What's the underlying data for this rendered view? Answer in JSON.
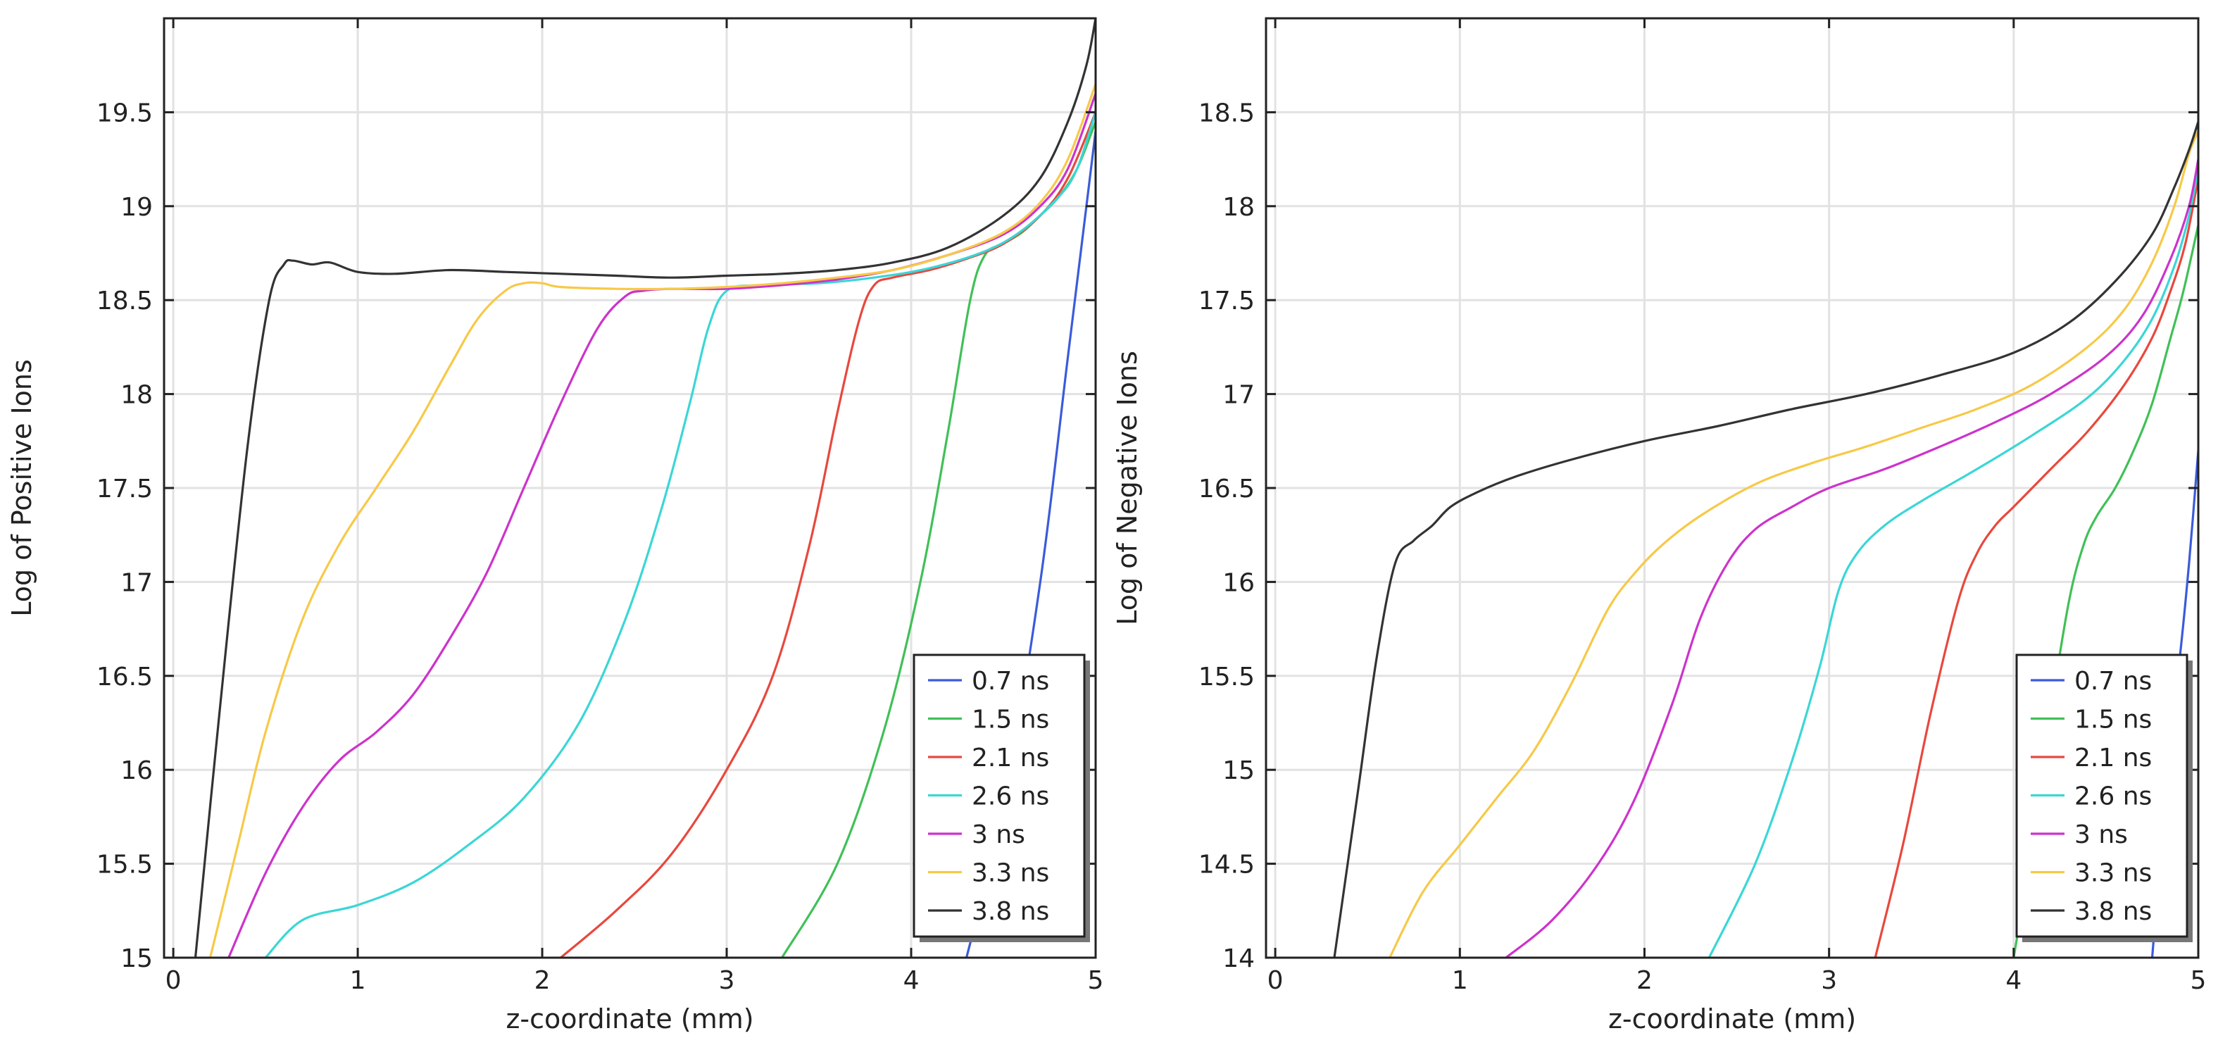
{
  "colors": {
    "0.7 ns": "#3b5bdb",
    "1.5 ns": "#40c057",
    "2.1 ns": "#e8483e",
    "2.6 ns": "#3bd6d6",
    "3 ns": "#cc33cc",
    "3.3 ns": "#f7c948",
    "3.8 ns": "#333333"
  },
  "chart_data": [
    {
      "type": "line",
      "title": "",
      "xlabel": "z-coordinate (mm)",
      "ylabel": "Log of Positive Ions",
      "xlim": [
        -0.05,
        5.0
      ],
      "ylim": [
        15.0,
        20.0
      ],
      "xticks": [
        "0",
        "1",
        "2",
        "3",
        "4",
        "5"
      ],
      "yticks": [
        "15",
        "15.5",
        "16",
        "16.5",
        "17",
        "17.5",
        "18",
        "18.5",
        "19",
        "19.5"
      ],
      "grid": true,
      "legend_position": "bottom-right",
      "series": [
        {
          "name": "0.7 ns",
          "x": [
            4.3,
            4.5,
            4.7,
            4.85,
            5.0
          ],
          "y": [
            15.0,
            15.8,
            17.0,
            18.2,
            19.4
          ]
        },
        {
          "name": "1.5 ns",
          "x": [
            3.3,
            3.6,
            3.85,
            4.05,
            4.2,
            4.32,
            4.4,
            4.5,
            4.6,
            4.7,
            4.8,
            4.9,
            5.0
          ],
          "y": [
            15.0,
            15.5,
            16.2,
            17.0,
            17.8,
            18.5,
            18.74,
            18.8,
            18.86,
            18.95,
            19.05,
            19.2,
            19.45
          ]
        },
        {
          "name": "2.1 ns",
          "x": [
            2.1,
            2.4,
            2.7,
            3.0,
            3.25,
            3.45,
            3.6,
            3.72,
            3.8,
            3.9,
            4.1,
            4.3,
            4.5,
            4.7,
            4.85,
            5.0
          ],
          "y": [
            15.0,
            15.25,
            15.55,
            16.0,
            16.5,
            17.2,
            17.9,
            18.4,
            18.58,
            18.62,
            18.66,
            18.72,
            18.8,
            18.95,
            19.15,
            19.5
          ]
        },
        {
          "name": "2.6 ns",
          "x": [
            0.5,
            0.7,
            1.0,
            1.3,
            1.6,
            1.9,
            2.2,
            2.45,
            2.65,
            2.8,
            2.9,
            3.0,
            3.2,
            3.5,
            3.8,
            4.1,
            4.4,
            4.6,
            4.8,
            4.9,
            5.0
          ],
          "y": [
            15.0,
            15.2,
            15.28,
            15.4,
            15.6,
            15.85,
            16.25,
            16.8,
            17.4,
            17.95,
            18.35,
            18.55,
            18.58,
            18.59,
            18.62,
            18.67,
            18.76,
            18.87,
            19.05,
            19.2,
            19.5
          ]
        },
        {
          "name": "3 ns",
          "x": [
            0.3,
            0.5,
            0.7,
            0.9,
            1.1,
            1.3,
            1.5,
            1.7,
            1.9,
            2.1,
            2.3,
            2.45,
            2.55,
            2.7,
            3.0,
            3.3,
            3.6,
            3.9,
            4.2,
            4.5,
            4.7,
            4.85,
            5.0
          ],
          "y": [
            15.0,
            15.45,
            15.8,
            16.05,
            16.2,
            16.4,
            16.7,
            17.05,
            17.5,
            17.95,
            18.35,
            18.52,
            18.55,
            18.56,
            18.56,
            18.58,
            18.61,
            18.66,
            18.74,
            18.85,
            19.0,
            19.2,
            19.6
          ]
        },
        {
          "name": "3.3 ns",
          "x": [
            0.2,
            0.35,
            0.5,
            0.7,
            0.9,
            1.1,
            1.3,
            1.5,
            1.65,
            1.8,
            1.9,
            2.0,
            2.1,
            2.4,
            2.7,
            3.0,
            3.3,
            3.6,
            3.9,
            4.2,
            4.5,
            4.7,
            4.85,
            5.0
          ],
          "y": [
            15.0,
            15.6,
            16.2,
            16.8,
            17.2,
            17.5,
            17.8,
            18.15,
            18.4,
            18.55,
            18.59,
            18.59,
            18.57,
            18.56,
            18.56,
            18.57,
            18.59,
            18.62,
            18.66,
            18.74,
            18.86,
            19.02,
            19.25,
            19.65
          ]
        },
        {
          "name": "3.8 ns",
          "x": [
            0.12,
            0.25,
            0.4,
            0.52,
            0.6,
            0.65,
            0.75,
            0.85,
            1.0,
            1.2,
            1.5,
            1.8,
            2.1,
            2.4,
            2.7,
            3.0,
            3.3,
            3.6,
            3.9,
            4.2,
            4.5,
            4.7,
            4.85,
            4.95,
            5.0
          ],
          "y": [
            15.0,
            16.3,
            17.7,
            18.5,
            18.69,
            18.71,
            18.69,
            18.7,
            18.65,
            18.64,
            18.66,
            18.65,
            18.64,
            18.63,
            18.62,
            18.63,
            18.64,
            18.66,
            18.7,
            18.78,
            18.95,
            19.15,
            19.45,
            19.75,
            20.0
          ]
        }
      ]
    },
    {
      "type": "line",
      "title": "",
      "xlabel": "z-coordinate (mm)",
      "ylabel": "Log of Negative Ions",
      "xlim": [
        -0.05,
        5.0
      ],
      "ylim": [
        14.0,
        19.0
      ],
      "xticks": [
        "0",
        "1",
        "2",
        "3",
        "4",
        "5"
      ],
      "yticks": [
        "14",
        "14.5",
        "15",
        "15.5",
        "16",
        "16.5",
        "17",
        "17.5",
        "18",
        "18.5"
      ],
      "grid": true,
      "legend_position": "bottom-right",
      "series": [
        {
          "name": "0.7 ns",
          "x": [
            4.75,
            4.8,
            4.85,
            4.9,
            4.95,
            5.0
          ],
          "y": [
            14.0,
            14.6,
            15.2,
            15.6,
            16.1,
            16.7
          ]
        },
        {
          "name": "1.5 ns",
          "x": [
            4.0,
            4.1,
            4.2,
            4.3,
            4.38,
            4.45,
            4.55,
            4.65,
            4.75,
            4.85,
            4.92,
            5.0
          ],
          "y": [
            14.0,
            14.6,
            15.3,
            15.9,
            16.2,
            16.35,
            16.5,
            16.7,
            16.95,
            17.3,
            17.55,
            17.9
          ]
        },
        {
          "name": "2.1 ns",
          "x": [
            3.25,
            3.4,
            3.55,
            3.7,
            3.8,
            3.9,
            4.0,
            4.2,
            4.4,
            4.6,
            4.75,
            4.85,
            4.93,
            5.0
          ],
          "y": [
            14.0,
            14.6,
            15.3,
            15.9,
            16.15,
            16.3,
            16.4,
            16.6,
            16.8,
            17.05,
            17.3,
            17.55,
            17.8,
            18.15
          ]
        },
        {
          "name": "2.6 ns",
          "x": [
            2.35,
            2.6,
            2.8,
            2.95,
            3.05,
            3.15,
            3.3,
            3.5,
            3.8,
            4.1,
            4.4,
            4.6,
            4.75,
            4.87,
            4.95,
            5.0
          ],
          "y": [
            14.0,
            14.5,
            15.05,
            15.55,
            15.95,
            16.15,
            16.3,
            16.43,
            16.6,
            16.78,
            16.98,
            17.18,
            17.4,
            17.68,
            17.95,
            18.2
          ]
        },
        {
          "name": "3 ns",
          "x": [
            1.25,
            1.5,
            1.75,
            1.95,
            2.15,
            2.3,
            2.45,
            2.6,
            2.8,
            3.0,
            3.3,
            3.6,
            3.9,
            4.2,
            4.5,
            4.7,
            4.85,
            4.95,
            5.0
          ],
          "y": [
            14.0,
            14.2,
            14.5,
            14.85,
            15.35,
            15.8,
            16.1,
            16.28,
            16.4,
            16.5,
            16.6,
            16.72,
            16.85,
            17.0,
            17.2,
            17.42,
            17.72,
            18.0,
            18.25
          ]
        },
        {
          "name": "3.3 ns",
          "x": [
            0.62,
            0.8,
            1.0,
            1.2,
            1.4,
            1.6,
            1.8,
            1.95,
            2.1,
            2.3,
            2.6,
            2.9,
            3.2,
            3.5,
            3.8,
            4.1,
            4.4,
            4.6,
            4.75,
            4.87,
            4.95,
            5.0
          ],
          "y": [
            14.0,
            14.35,
            14.6,
            14.85,
            15.1,
            15.45,
            15.85,
            16.05,
            16.2,
            16.35,
            16.52,
            16.63,
            16.72,
            16.82,
            16.92,
            17.05,
            17.25,
            17.45,
            17.7,
            18.0,
            18.28,
            18.4
          ]
        },
        {
          "name": "3.8 ns",
          "x": [
            0.32,
            0.45,
            0.55,
            0.65,
            0.75,
            0.85,
            0.95,
            1.1,
            1.3,
            1.6,
            2.0,
            2.4,
            2.8,
            3.2,
            3.6,
            4.0,
            4.3,
            4.55,
            4.75,
            4.87,
            4.95,
            5.0
          ],
          "y": [
            14.0,
            14.9,
            15.6,
            16.1,
            16.22,
            16.3,
            16.4,
            16.48,
            16.56,
            16.65,
            16.75,
            16.83,
            16.92,
            17.0,
            17.1,
            17.22,
            17.38,
            17.6,
            17.85,
            18.1,
            18.3,
            18.45
          ]
        }
      ]
    }
  ]
}
